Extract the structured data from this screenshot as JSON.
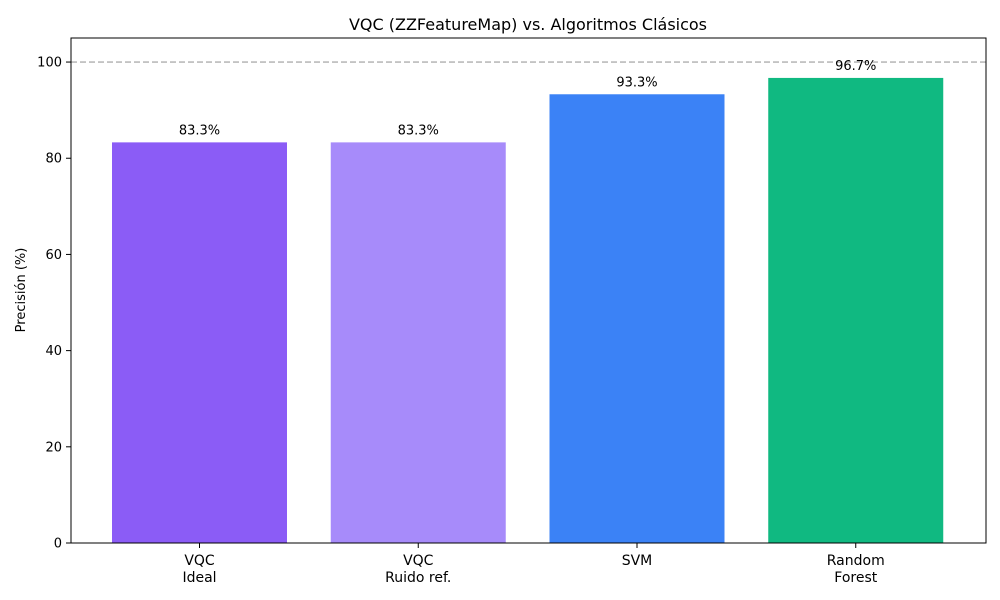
{
  "chart_data": {
    "type": "bar",
    "title": "VQC (ZZFeatureMap) vs. Algoritmos Clásicos",
    "xlabel": "",
    "ylabel": "Precisión (%)",
    "ylim": [
      0,
      105
    ],
    "yticks": [
      0,
      20,
      40,
      60,
      80,
      100
    ],
    "categories": [
      [
        "VQC",
        "Ideal"
      ],
      [
        "VQC",
        "Ruido ref."
      ],
      [
        "SVM"
      ],
      [
        "Random",
        "Forest"
      ]
    ],
    "values": [
      83.3,
      83.3,
      93.3,
      96.7
    ],
    "data_labels": [
      "83.3%",
      "83.3%",
      "93.3%",
      "96.7%"
    ],
    "colors": [
      "#8b5cf6",
      "#a78bfa",
      "#3b82f6",
      "#10b981"
    ],
    "reference_line": {
      "y": 100,
      "style": "dashed",
      "color": "#bbbbbb"
    },
    "grid": false,
    "legend": "none"
  }
}
